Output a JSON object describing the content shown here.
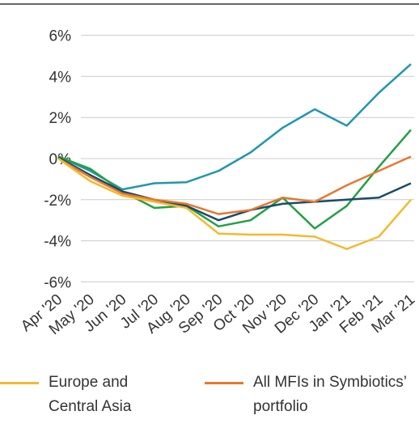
{
  "chart_data": {
    "type": "line",
    "categories": [
      "Apr '20",
      "May '20",
      "Jun '20",
      "Jul '20",
      "Aug '20",
      "Sep '20",
      "Oct '20",
      "Nov '20",
      "Dec '20",
      "Jan '21",
      "Feb '21",
      "Mar '21"
    ],
    "ylim": [
      -7,
      7.5
    ],
    "yticks": [
      {
        "value": -6,
        "label": "-6%"
      },
      {
        "value": -4,
        "label": "-4%"
      },
      {
        "value": -2,
        "label": "-2%"
      },
      {
        "value": 0,
        "label": "0%"
      },
      {
        "value": 2,
        "label": "2%"
      },
      {
        "value": 4,
        "label": "4%"
      },
      {
        "value": 6,
        "label": "6%"
      }
    ],
    "grid": true,
    "series": [
      {
        "color": "#2196b0",
        "values": [
          0.1,
          -0.6,
          -1.5,
          -1.2,
          -1.15,
          -0.6,
          0.3,
          1.5,
          2.4,
          1.6,
          3.2,
          4.6
        ]
      },
      {
        "color": "#22a044",
        "values": [
          0.1,
          -0.5,
          -1.6,
          -2.4,
          -2.3,
          -3.3,
          -3.0,
          -1.9,
          -3.4,
          -2.3,
          -0.4,
          1.4
        ]
      },
      {
        "color": "#1b4a6b",
        "values": [
          0.05,
          -0.8,
          -1.6,
          -2.0,
          -2.3,
          -3.0,
          -2.5,
          -2.2,
          -2.1,
          -2.0,
          -1.9,
          -1.2
        ]
      },
      {
        "name": "All MFIs in Symbiotics’ portfolio",
        "color": "#e8772e",
        "values": [
          0,
          -0.9,
          -1.7,
          -2.0,
          -2.2,
          -2.7,
          -2.5,
          -1.9,
          -2.1,
          -1.3,
          -0.6,
          0.1
        ]
      },
      {
        "name": "Europe and Central Asia",
        "color": "#f5b82e",
        "values": [
          0,
          -1.1,
          -1.8,
          -2.1,
          -2.4,
          -3.65,
          -3.7,
          -3.7,
          -3.8,
          -4.4,
          -3.8,
          -2.0
        ]
      }
    ]
  }
}
